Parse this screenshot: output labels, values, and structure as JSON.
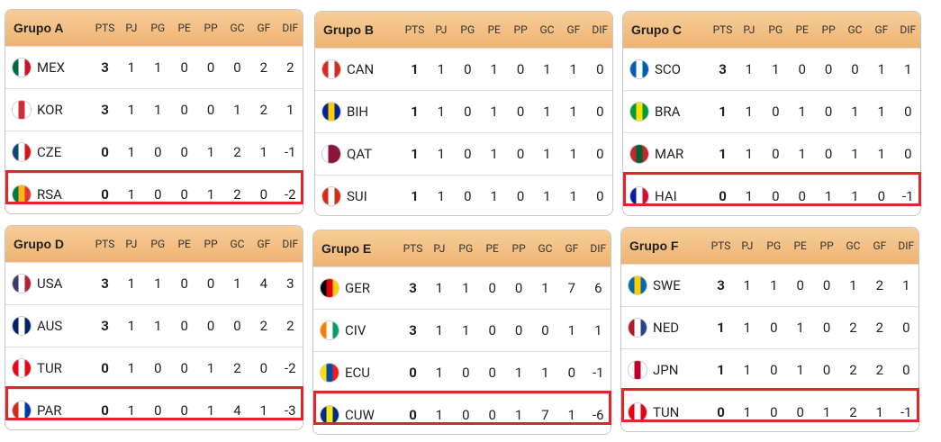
{
  "columns": [
    "PTS",
    "PJ",
    "PG",
    "PE",
    "PP",
    "GC",
    "GF",
    "DIF"
  ],
  "groups": [
    {
      "title": "Grupo A",
      "rows": [
        {
          "code": "MEX",
          "flag": [
            "#006847",
            "#ffffff",
            "#ce1126"
          ],
          "stats": [
            3,
            1,
            1,
            0,
            0,
            0,
            2,
            2
          ]
        },
        {
          "code": "KOR",
          "flag": [
            "#ffffff",
            "#cd2e3a",
            "#ffffff"
          ],
          "stats": [
            3,
            1,
            1,
            0,
            0,
            1,
            2,
            1
          ]
        },
        {
          "code": "CZE",
          "flag": [
            "#11457e",
            "#ffffff",
            "#d7141a"
          ],
          "stats": [
            0,
            1,
            0,
            0,
            1,
            2,
            1,
            -1
          ]
        },
        {
          "code": "RSA",
          "flag": [
            "#007749",
            "#ffb612",
            "#de3831"
          ],
          "stats": [
            0,
            1,
            0,
            0,
            1,
            2,
            0,
            -2
          ],
          "highlight": true
        }
      ]
    },
    {
      "title": "Grupo B",
      "rows": [
        {
          "code": "CAN",
          "flag": [
            "#d52b1e",
            "#ffffff",
            "#d52b1e"
          ],
          "stats": [
            1,
            1,
            0,
            1,
            0,
            1,
            1,
            0
          ]
        },
        {
          "code": "BIH",
          "flag": [
            "#002395",
            "#fecb00",
            "#002395"
          ],
          "stats": [
            1,
            1,
            0,
            1,
            0,
            1,
            1,
            0
          ]
        },
        {
          "code": "QAT",
          "flag": [
            "#ffffff",
            "#8a1538",
            "#8a1538"
          ],
          "stats": [
            1,
            1,
            0,
            1,
            0,
            1,
            1,
            0
          ]
        },
        {
          "code": "SUI",
          "flag": [
            "#d52b1e",
            "#ffffff",
            "#d52b1e"
          ],
          "stats": [
            1,
            1,
            0,
            1,
            0,
            1,
            1,
            0
          ]
        }
      ]
    },
    {
      "title": "Grupo C",
      "rows": [
        {
          "code": "SCO",
          "flag": [
            "#005eb8",
            "#ffffff",
            "#005eb8"
          ],
          "stats": [
            3,
            1,
            1,
            0,
            0,
            0,
            1,
            1
          ]
        },
        {
          "code": "BRA",
          "flag": [
            "#009c3b",
            "#ffdf00",
            "#009c3b"
          ],
          "stats": [
            1,
            1,
            0,
            1,
            0,
            1,
            1,
            0
          ]
        },
        {
          "code": "MAR",
          "flag": [
            "#c1272d",
            "#006233",
            "#c1272d"
          ],
          "stats": [
            1,
            1,
            0,
            1,
            0,
            1,
            1,
            0
          ]
        },
        {
          "code": "HAI",
          "flag": [
            "#00209f",
            "#ffffff",
            "#d21034"
          ],
          "stats": [
            0,
            1,
            0,
            0,
            1,
            1,
            0,
            -1
          ],
          "highlight": true
        }
      ]
    },
    {
      "title": "Grupo D",
      "rows": [
        {
          "code": "USA",
          "flag": [
            "#3c3b6e",
            "#ffffff",
            "#b22234"
          ],
          "stats": [
            3,
            1,
            1,
            0,
            0,
            1,
            4,
            3
          ]
        },
        {
          "code": "AUS",
          "flag": [
            "#012169",
            "#ffffff",
            "#012169"
          ],
          "stats": [
            3,
            1,
            1,
            0,
            0,
            0,
            2,
            2
          ]
        },
        {
          "code": "TUR",
          "flag": [
            "#e30a17",
            "#ffffff",
            "#e30a17"
          ],
          "stats": [
            0,
            1,
            0,
            0,
            1,
            2,
            0,
            -2
          ]
        },
        {
          "code": "PAR",
          "flag": [
            "#d52b1e",
            "#ffffff",
            "#0038a8"
          ],
          "stats": [
            0,
            1,
            0,
            0,
            1,
            4,
            1,
            -3
          ],
          "highlight": true
        }
      ]
    },
    {
      "title": "Grupo E",
      "rows": [
        {
          "code": "GER",
          "flag": [
            "#000000",
            "#dd0000",
            "#ffce00"
          ],
          "stats": [
            3,
            1,
            1,
            0,
            0,
            1,
            7,
            6
          ]
        },
        {
          "code": "CIV",
          "flag": [
            "#f77f00",
            "#ffffff",
            "#009e60"
          ],
          "stats": [
            3,
            1,
            1,
            0,
            0,
            0,
            1,
            1
          ]
        },
        {
          "code": "ECU",
          "flag": [
            "#ffdd00",
            "#034ea2",
            "#ed1c24"
          ],
          "stats": [
            0,
            1,
            0,
            0,
            1,
            1,
            0,
            -1
          ]
        },
        {
          "code": "CUW",
          "flag": [
            "#002b7f",
            "#f9e814",
            "#002b7f"
          ],
          "stats": [
            0,
            1,
            0,
            0,
            1,
            7,
            1,
            -6
          ],
          "highlight": true
        }
      ]
    },
    {
      "title": "Grupo F",
      "rows": [
        {
          "code": "SWE",
          "flag": [
            "#006aa7",
            "#fecc00",
            "#006aa7"
          ],
          "stats": [
            3,
            1,
            1,
            0,
            0,
            1,
            2,
            1
          ]
        },
        {
          "code": "NED",
          "flag": [
            "#ae1c28",
            "#ffffff",
            "#21468b"
          ],
          "stats": [
            1,
            1,
            0,
            1,
            0,
            2,
            2,
            0
          ]
        },
        {
          "code": "JPN",
          "flag": [
            "#ffffff",
            "#bc002d",
            "#ffffff"
          ],
          "stats": [
            1,
            1,
            0,
            1,
            0,
            2,
            2,
            0
          ]
        },
        {
          "code": "TUN",
          "flag": [
            "#e70013",
            "#ffffff",
            "#e70013"
          ],
          "stats": [
            0,
            1,
            0,
            0,
            1,
            2,
            1,
            -1
          ],
          "highlight": true
        }
      ]
    }
  ]
}
